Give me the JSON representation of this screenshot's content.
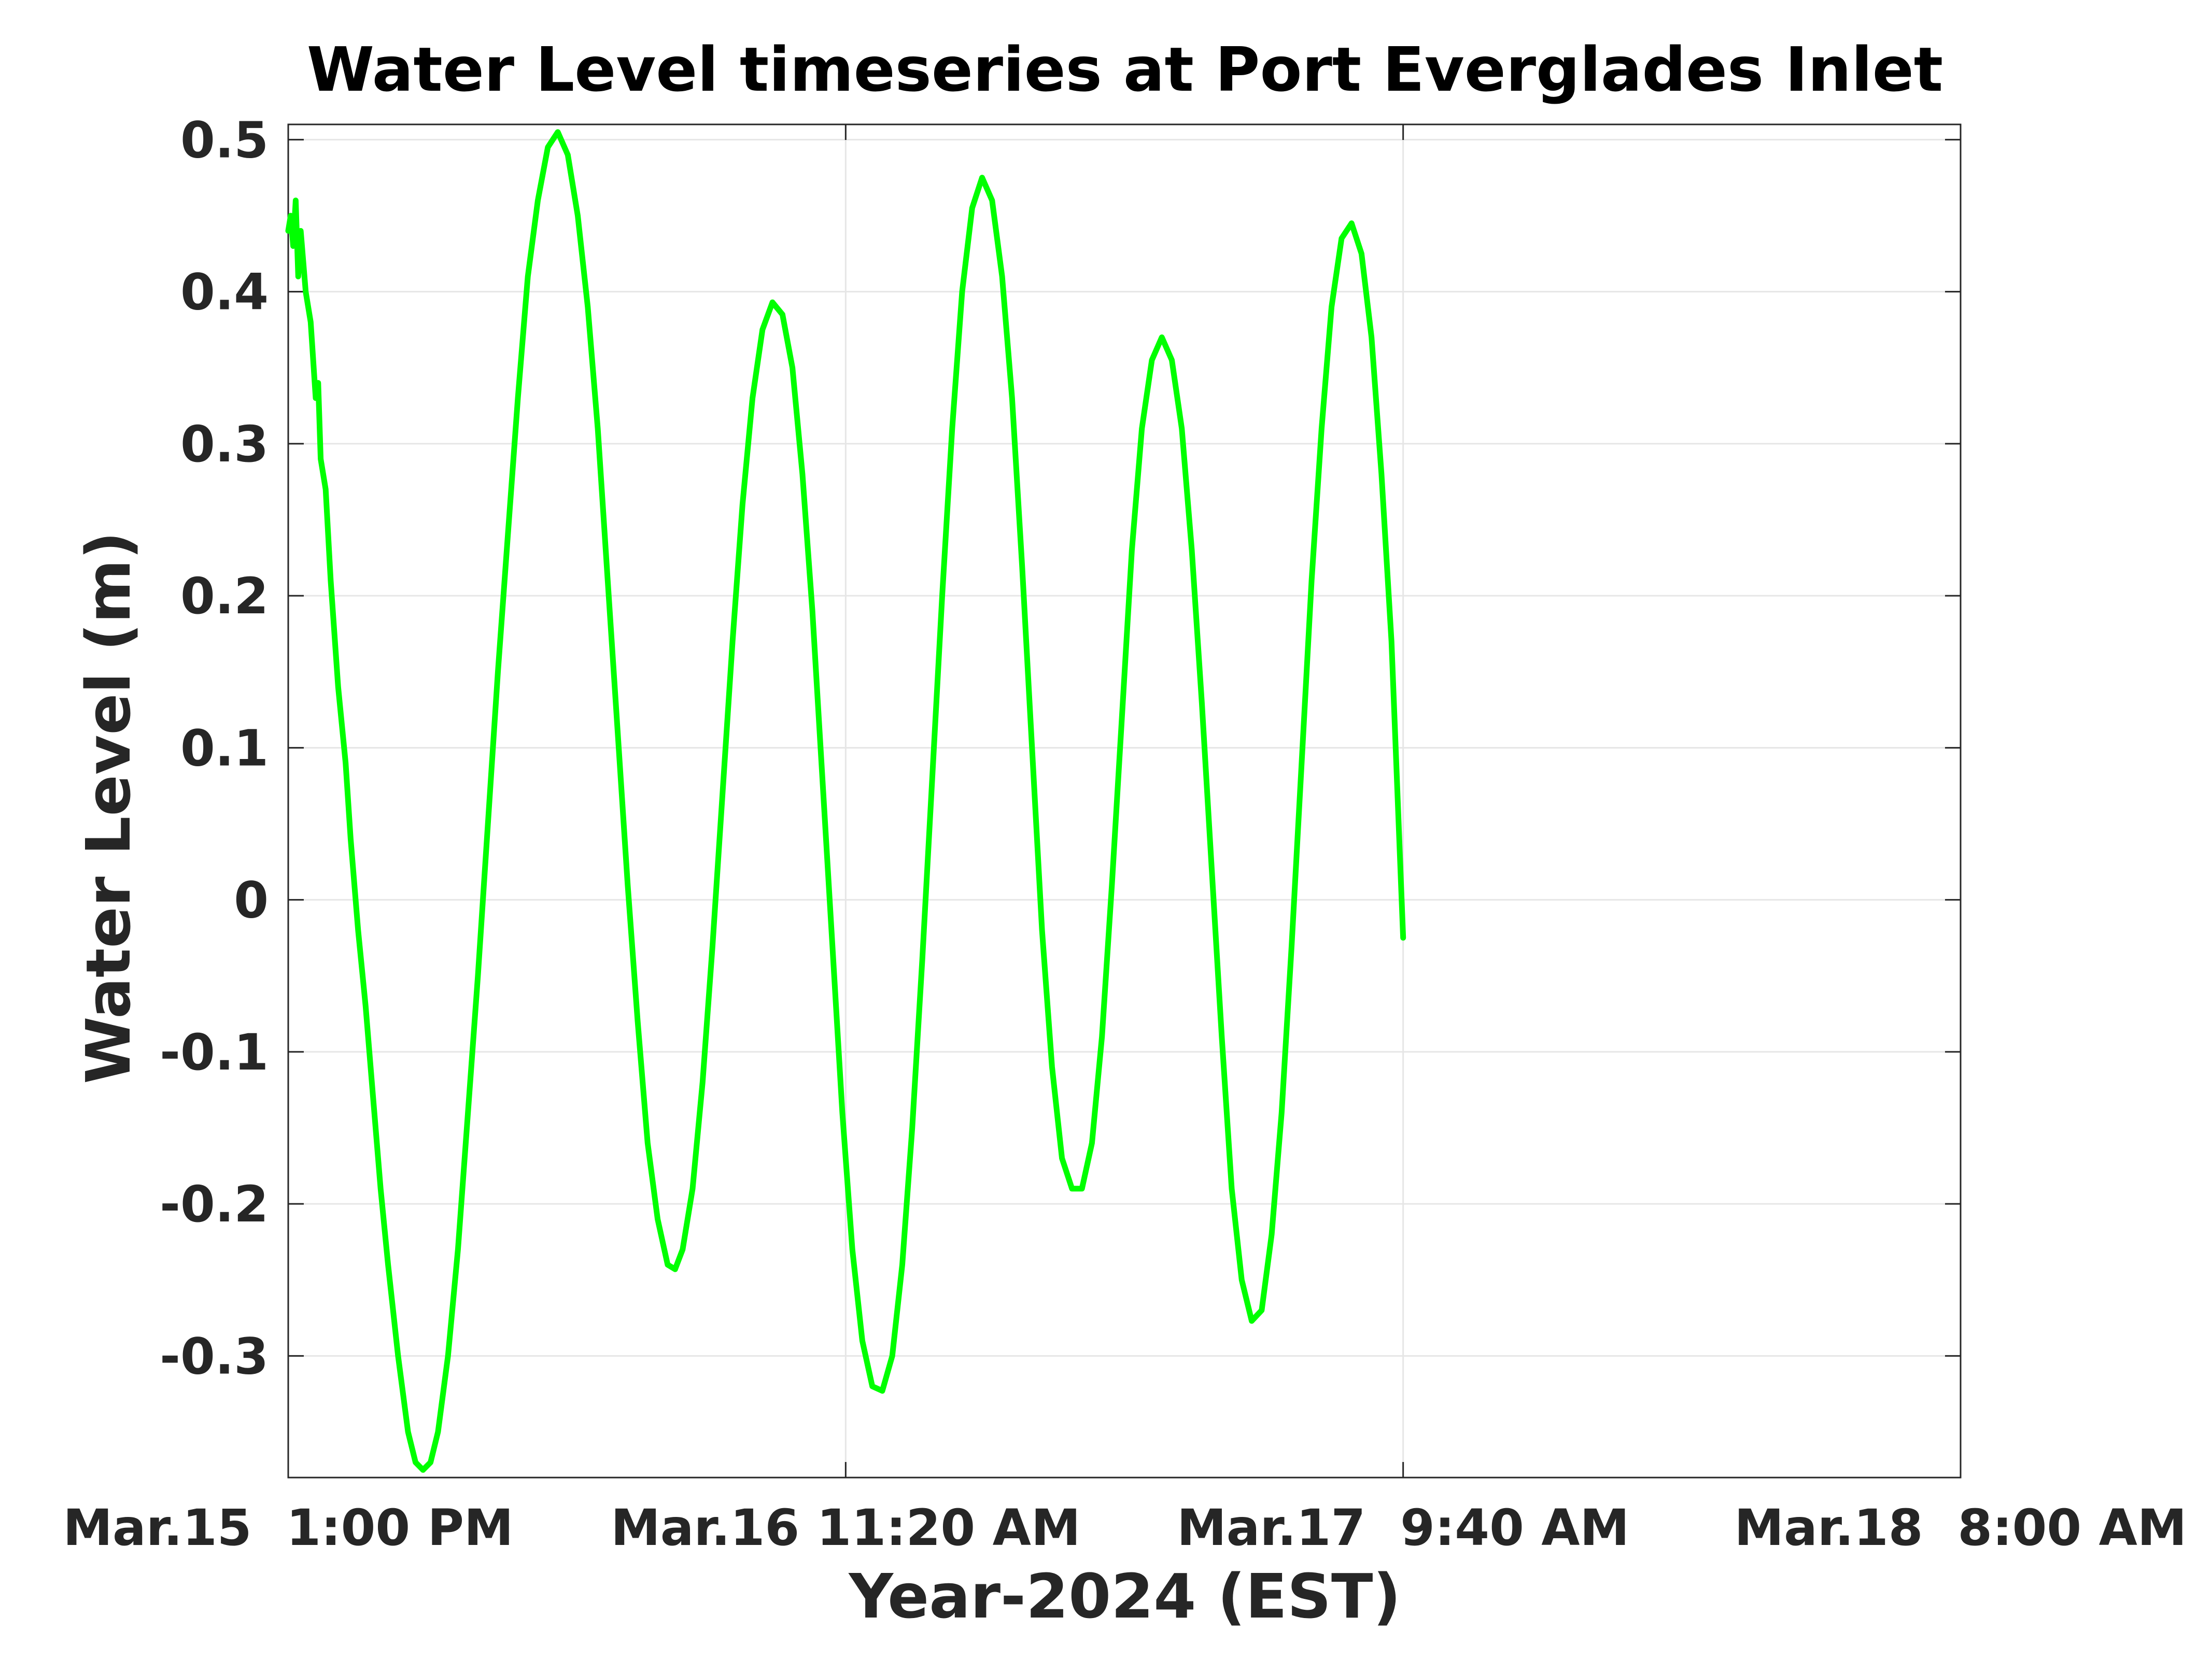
{
  "chart_data": {
    "type": "line",
    "title": "Water Level timeseries at Port Everglades Inlet",
    "xlabel": "Year-2024 (EST)",
    "ylabel": "Water Level (m)",
    "ylim": [
      -0.38,
      0.51
    ],
    "yticks": [
      -0.3,
      -0.2,
      -0.1,
      0,
      0.1,
      0.2,
      0.3,
      0.4,
      0.5
    ],
    "ytick_labels": [
      "-0.3",
      "-0.2",
      "-0.1",
      "0",
      "0.1",
      "0.2",
      "0.3",
      "0.4",
      "0.5"
    ],
    "xlim": [
      "2024-03-15 13:00",
      "2024-03-18 08:00"
    ],
    "xticks": [
      "2024-03-15 13:00",
      "2024-03-16 11:20",
      "2024-03-17 09:40",
      "2024-03-18 08:00"
    ],
    "xtick_labels": [
      "Mar.15  1:00 PM",
      "Mar.16 11:20 AM",
      "Mar.17  9:40 AM",
      "Mar.18  8:00 AM"
    ],
    "grid": true,
    "series": [
      {
        "color": "#00ff00",
        "points": [
          [
            "2024-03-15 13:00",
            0.44
          ],
          [
            "2024-03-15 13:06",
            0.45
          ],
          [
            "2024-03-15 13:12",
            0.43
          ],
          [
            "2024-03-15 13:18",
            0.46
          ],
          [
            "2024-03-15 13:24",
            0.41
          ],
          [
            "2024-03-15 13:30",
            0.44
          ],
          [
            "2024-03-15 13:42",
            0.4
          ],
          [
            "2024-03-15 13:54",
            0.38
          ],
          [
            "2024-03-15 14:06",
            0.33
          ],
          [
            "2024-03-15 14:12",
            0.34
          ],
          [
            "2024-03-15 14:18",
            0.29
          ],
          [
            "2024-03-15 14:30",
            0.27
          ],
          [
            "2024-03-15 14:42",
            0.21
          ],
          [
            "2024-03-15 15:00",
            0.14
          ],
          [
            "2024-03-15 15:18",
            0.09
          ],
          [
            "2024-03-15 15:30",
            0.04
          ],
          [
            "2024-03-15 15:48",
            -0.02
          ],
          [
            "2024-03-15 16:06",
            -0.07
          ],
          [
            "2024-03-15 16:24",
            -0.13
          ],
          [
            "2024-03-15 16:42",
            -0.19
          ],
          [
            "2024-03-15 17:00",
            -0.24
          ],
          [
            "2024-03-15 17:24",
            -0.3
          ],
          [
            "2024-03-15 17:48",
            -0.35
          ],
          [
            "2024-03-15 18:06",
            -0.37
          ],
          [
            "2024-03-15 18:24",
            -0.375
          ],
          [
            "2024-03-15 18:42",
            -0.37
          ],
          [
            "2024-03-15 19:00",
            -0.35
          ],
          [
            "2024-03-15 19:24",
            -0.3
          ],
          [
            "2024-03-15 19:48",
            -0.23
          ],
          [
            "2024-03-15 20:12",
            -0.14
          ],
          [
            "2024-03-15 20:36",
            -0.05
          ],
          [
            "2024-03-15 21:00",
            0.05
          ],
          [
            "2024-03-15 21:24",
            0.15
          ],
          [
            "2024-03-15 21:48",
            0.24
          ],
          [
            "2024-03-15 22:12",
            0.33
          ],
          [
            "2024-03-15 22:36",
            0.41
          ],
          [
            "2024-03-15 23:00",
            0.46
          ],
          [
            "2024-03-15 23:24",
            0.495
          ],
          [
            "2024-03-15 23:48",
            0.505
          ],
          [
            "2024-03-16 00:12",
            0.49
          ],
          [
            "2024-03-16 00:36",
            0.45
          ],
          [
            "2024-03-16 01:00",
            0.39
          ],
          [
            "2024-03-16 01:24",
            0.31
          ],
          [
            "2024-03-16 01:48",
            0.21
          ],
          [
            "2024-03-16 02:12",
            0.11
          ],
          [
            "2024-03-16 02:36",
            0.01
          ],
          [
            "2024-03-16 03:00",
            -0.08
          ],
          [
            "2024-03-16 03:24",
            -0.16
          ],
          [
            "2024-03-16 03:48",
            -0.21
          ],
          [
            "2024-03-16 04:12",
            -0.24
          ],
          [
            "2024-03-16 04:30",
            -0.243
          ],
          [
            "2024-03-16 04:48",
            -0.23
          ],
          [
            "2024-03-16 05:12",
            -0.19
          ],
          [
            "2024-03-16 05:36",
            -0.12
          ],
          [
            "2024-03-16 06:00",
            -0.03
          ],
          [
            "2024-03-16 06:24",
            0.07
          ],
          [
            "2024-03-16 06:48",
            0.17
          ],
          [
            "2024-03-16 07:12",
            0.26
          ],
          [
            "2024-03-16 07:36",
            0.33
          ],
          [
            "2024-03-16 08:00",
            0.375
          ],
          [
            "2024-03-16 08:24",
            0.393
          ],
          [
            "2024-03-16 08:48",
            0.385
          ],
          [
            "2024-03-16 09:12",
            0.35
          ],
          [
            "2024-03-16 09:36",
            0.28
          ],
          [
            "2024-03-16 10:00",
            0.19
          ],
          [
            "2024-03-16 10:24",
            0.08
          ],
          [
            "2024-03-16 10:48",
            -0.03
          ],
          [
            "2024-03-16 11:12",
            -0.14
          ],
          [
            "2024-03-16 11:36",
            -0.23
          ],
          [
            "2024-03-16 12:00",
            -0.29
          ],
          [
            "2024-03-16 12:24",
            -0.32
          ],
          [
            "2024-03-16 12:48",
            -0.323
          ],
          [
            "2024-03-16 13:12",
            -0.3
          ],
          [
            "2024-03-16 13:36",
            -0.24
          ],
          [
            "2024-03-16 14:00",
            -0.15
          ],
          [
            "2024-03-16 14:24",
            -0.04
          ],
          [
            "2024-03-16 14:48",
            0.08
          ],
          [
            "2024-03-16 15:12",
            0.2
          ],
          [
            "2024-03-16 15:36",
            0.31
          ],
          [
            "2024-03-16 16:00",
            0.4
          ],
          [
            "2024-03-16 16:24",
            0.455
          ],
          [
            "2024-03-16 16:48",
            0.475
          ],
          [
            "2024-03-16 17:12",
            0.46
          ],
          [
            "2024-03-16 17:36",
            0.41
          ],
          [
            "2024-03-16 18:00",
            0.33
          ],
          [
            "2024-03-16 18:24",
            0.22
          ],
          [
            "2024-03-16 18:48",
            0.1
          ],
          [
            "2024-03-16 19:12",
            -0.02
          ],
          [
            "2024-03-16 19:36",
            -0.11
          ],
          [
            "2024-03-16 20:00",
            -0.17
          ],
          [
            "2024-03-16 20:24",
            -0.19
          ],
          [
            "2024-03-16 20:48",
            -0.19
          ],
          [
            "2024-03-16 21:12",
            -0.16
          ],
          [
            "2024-03-16 21:36",
            -0.09
          ],
          [
            "2024-03-16 22:00",
            0.01
          ],
          [
            "2024-03-16 22:24",
            0.12
          ],
          [
            "2024-03-16 22:48",
            0.23
          ],
          [
            "2024-03-16 23:12",
            0.31
          ],
          [
            "2024-03-16 23:36",
            0.355
          ],
          [
            "2024-03-17 00:00",
            0.37
          ],
          [
            "2024-03-17 00:24",
            0.355
          ],
          [
            "2024-03-17 00:48",
            0.31
          ],
          [
            "2024-03-17 01:12",
            0.23
          ],
          [
            "2024-03-17 01:36",
            0.13
          ],
          [
            "2024-03-17 02:00",
            0.02
          ],
          [
            "2024-03-17 02:24",
            -0.09
          ],
          [
            "2024-03-17 02:48",
            -0.19
          ],
          [
            "2024-03-17 03:12",
            -0.25
          ],
          [
            "2024-03-17 03:36",
            -0.277
          ],
          [
            "2024-03-17 04:00",
            -0.27
          ],
          [
            "2024-03-17 04:24",
            -0.22
          ],
          [
            "2024-03-17 04:48",
            -0.14
          ],
          [
            "2024-03-17 05:12",
            -0.03
          ],
          [
            "2024-03-17 05:36",
            0.09
          ],
          [
            "2024-03-17 06:00",
            0.21
          ],
          [
            "2024-03-17 06:24",
            0.31
          ],
          [
            "2024-03-17 06:48",
            0.39
          ],
          [
            "2024-03-17 07:12",
            0.435
          ],
          [
            "2024-03-17 07:36",
            0.445
          ],
          [
            "2024-03-17 08:00",
            0.425
          ],
          [
            "2024-03-17 08:24",
            0.37
          ],
          [
            "2024-03-17 08:48",
            0.28
          ],
          [
            "2024-03-17 09:12",
            0.17
          ],
          [
            "2024-03-17 09:40",
            -0.025
          ]
        ]
      }
    ]
  }
}
